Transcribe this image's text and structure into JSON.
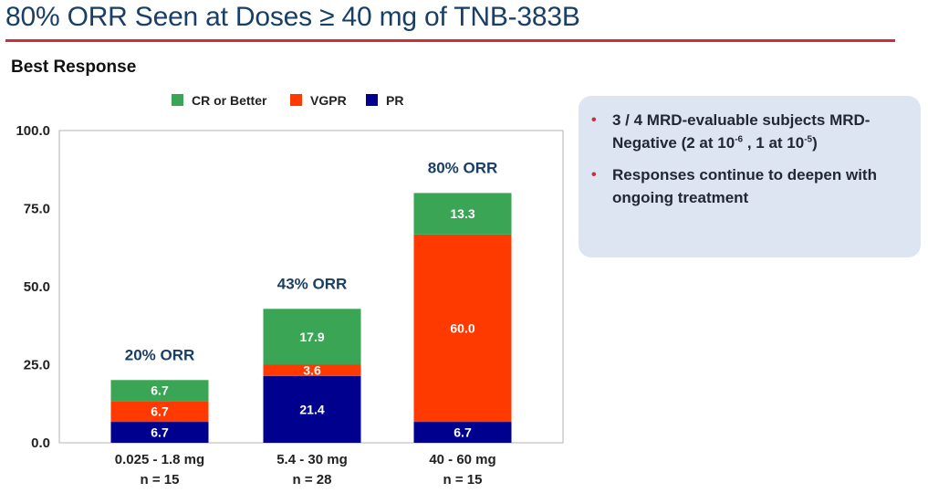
{
  "slide": {
    "title": "80% ORR Seen at Doses ≥ 40 mg of TNB-383B",
    "section_title": "Best Response"
  },
  "colors": {
    "title_text": "#1a3f66",
    "title_rule": "#c8313b",
    "cr_or_better": "#3aa655",
    "vgpr": "#ff3a00",
    "pr": "#00008f",
    "orr_label": "#1a3f66",
    "callout_bg": "#dde5f2",
    "bullet": "#c8313b"
  },
  "chart_data": {
    "type": "bar",
    "stacked": true,
    "ylim": [
      0,
      100
    ],
    "yticks": [
      0,
      25,
      50,
      75,
      100
    ],
    "ytick_labels": [
      "0.0",
      "25.0",
      "50.0",
      "75.0",
      "100.0"
    ],
    "grid": false,
    "legend_position": "top",
    "categories": [
      {
        "line1": "0.025 - 1.8 mg",
        "line2": "n = 15"
      },
      {
        "line1": "5.4 - 30 mg",
        "line2": "n = 28"
      },
      {
        "line1": "40 - 60 mg",
        "line2": "n = 15"
      }
    ],
    "series": [
      {
        "name": "PR",
        "color": "#00008f",
        "values": [
          6.7,
          21.4,
          6.7
        ],
        "labels": [
          "6.7",
          "21.4",
          "6.7"
        ]
      },
      {
        "name": "VGPR",
        "color": "#ff3a00",
        "values": [
          6.7,
          3.6,
          60.0
        ],
        "labels": [
          "6.7",
          "3.6",
          "60.0"
        ]
      },
      {
        "name": "CR or Better",
        "color": "#3aa655",
        "values": [
          6.7,
          17.9,
          13.3
        ],
        "labels": [
          "6.7",
          "17.9",
          "13.3"
        ]
      }
    ],
    "legend_order": [
      "CR or Better",
      "VGPR",
      "PR"
    ],
    "annotations": [
      "20% ORR",
      "43% ORR",
      "80% ORR"
    ]
  },
  "callout": {
    "bullets": [
      {
        "pre": "3 / 4 MRD-evaluable subjects MRD-Negative (2 at 10",
        "sup1": "-6",
        "mid": " , 1 at 10",
        "sup2": "-5",
        "post": ")"
      },
      {
        "text": "Responses continue to deepen with ongoing treatment"
      }
    ]
  }
}
